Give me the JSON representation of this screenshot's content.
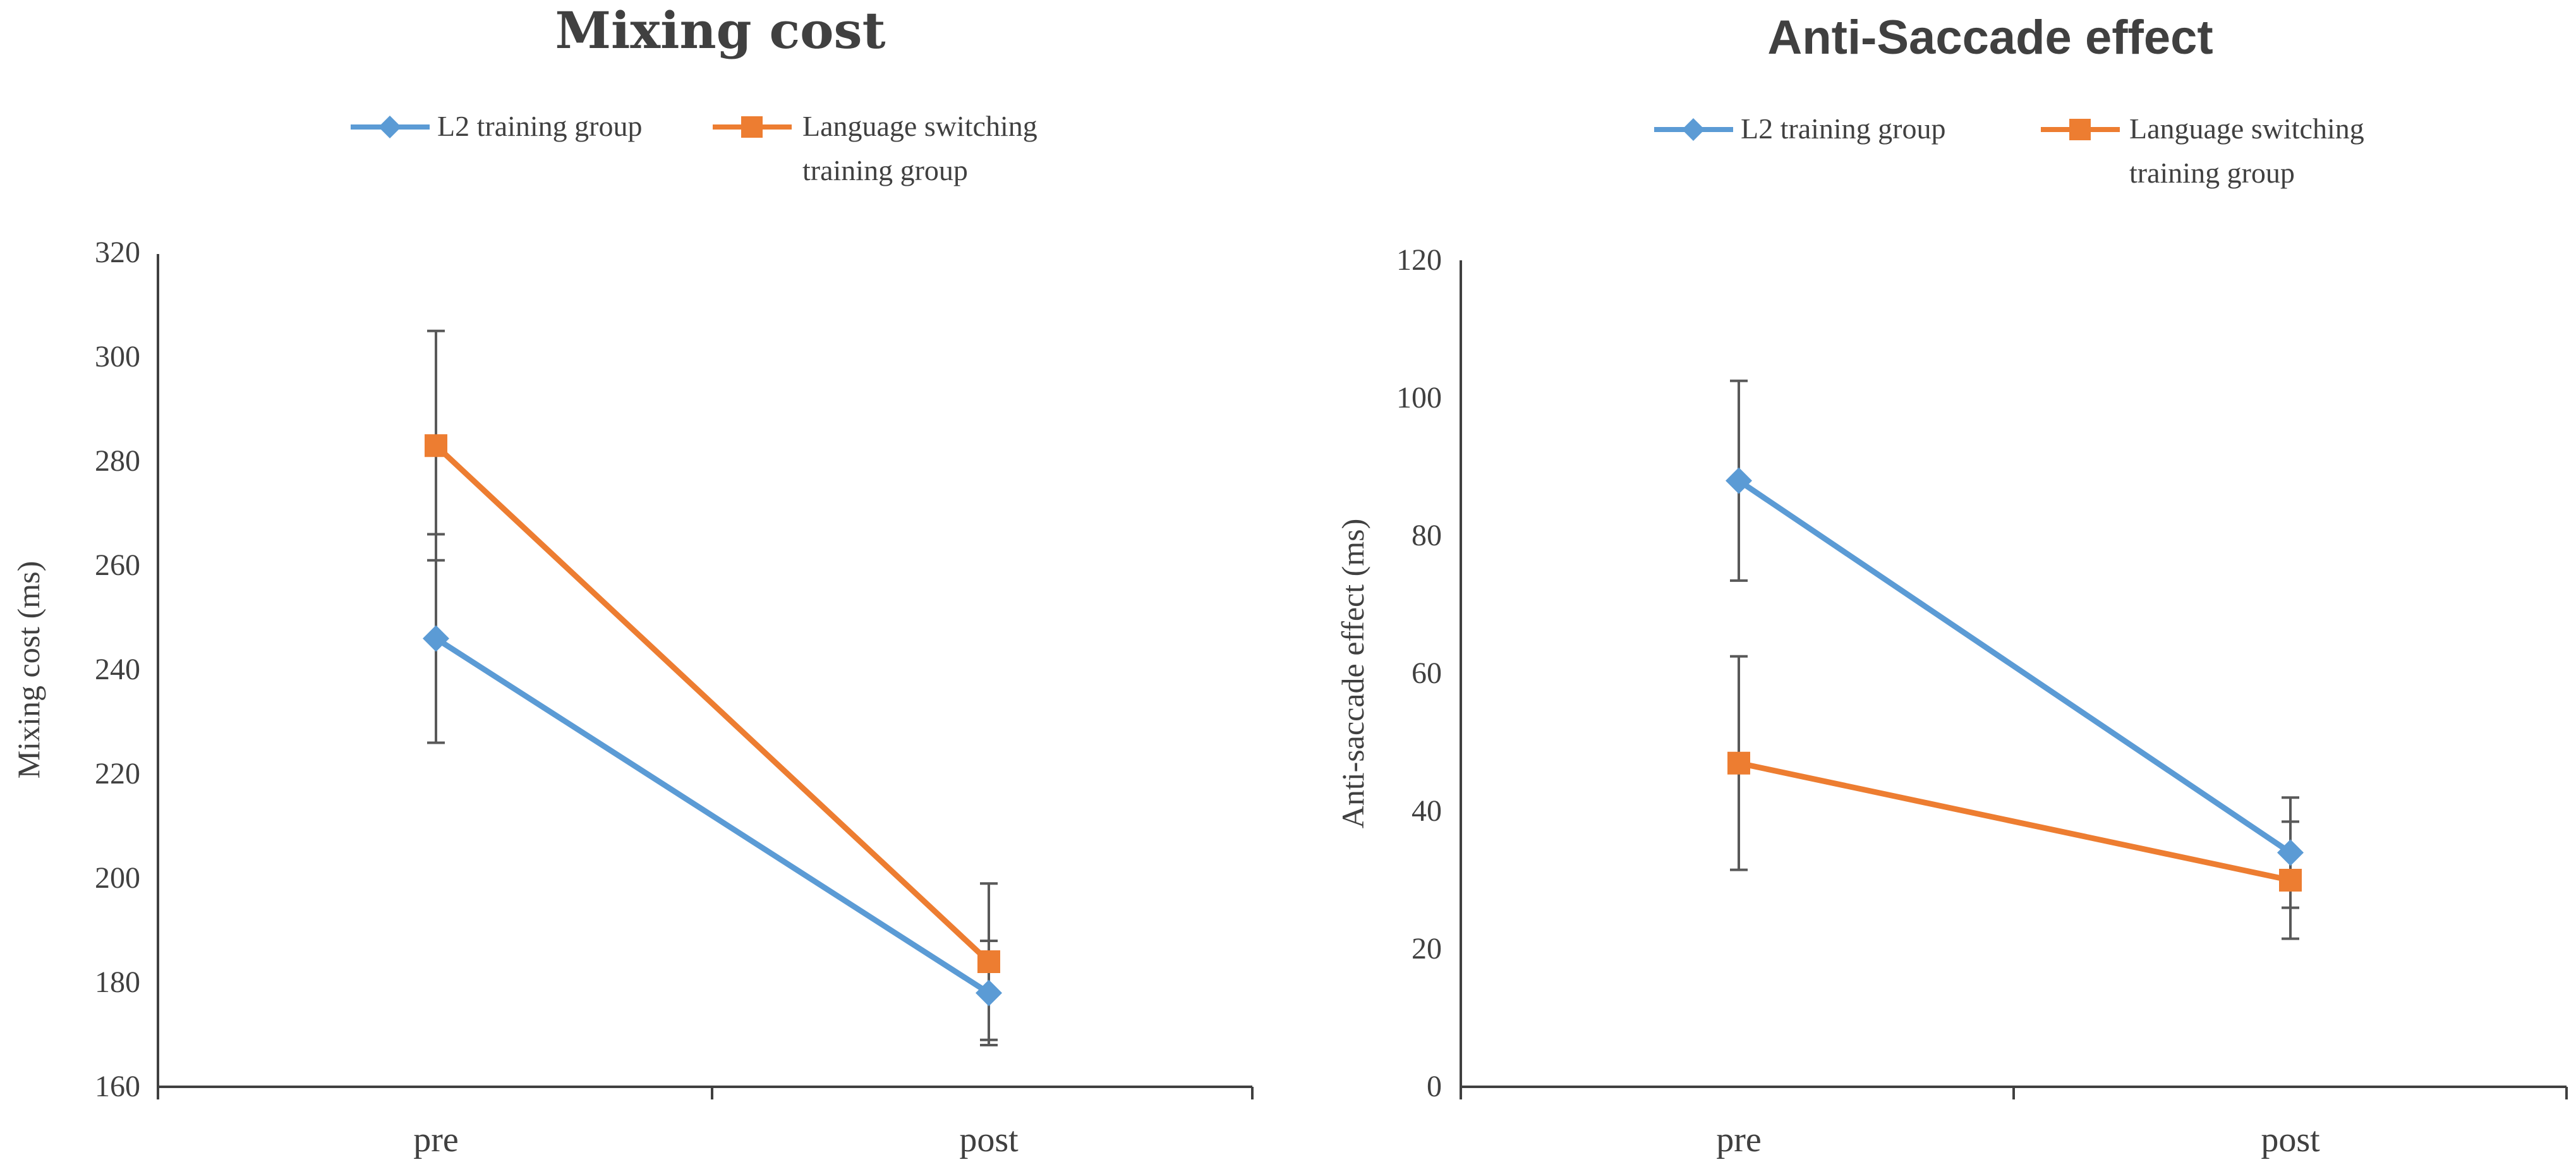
{
  "colors": {
    "l2": "#5B9BD5",
    "switching": "#ED7D31",
    "axis": "#404040",
    "text": "#404040",
    "error": "#595959"
  },
  "chart_data": [
    {
      "type": "line",
      "title": "Mixing cost",
      "ylabel": "Mixing cost (ms)",
      "xlabel": "",
      "categories": [
        "pre",
        "post"
      ],
      "ylim": [
        160,
        320
      ],
      "yticks": [
        "160",
        "180",
        "200",
        "220",
        "240",
        "260",
        "280",
        "300",
        "320"
      ],
      "legend_position": "top",
      "series": [
        {
          "name": "L2 training group",
          "marker": "diamond",
          "values": [
            246,
            178
          ],
          "errors": [
            20,
            10
          ]
        },
        {
          "name": "Language switching training group",
          "name_line1": "Language switching",
          "name_line2": "training group",
          "marker": "square",
          "values": [
            283,
            184
          ],
          "errors": [
            22,
            15
          ]
        }
      ]
    },
    {
      "type": "line",
      "title": "Anti-Saccade effect",
      "ylabel": "Anti-saccade effect (ms)",
      "xlabel": "",
      "categories": [
        "pre",
        "post"
      ],
      "ylim": [
        0,
        120
      ],
      "yticks": [
        "0",
        "20",
        "40",
        "60",
        "80",
        "100",
        "120"
      ],
      "legend_position": "top",
      "series": [
        {
          "name": "L2 training group",
          "marker": "diamond",
          "values": [
            88,
            34
          ],
          "errors": [
            14.5,
            8
          ]
        },
        {
          "name": "Language switching training group",
          "name_line1": "Language switching",
          "name_line2": "training group",
          "marker": "square",
          "values": [
            47,
            30
          ],
          "errors": [
            15.5,
            8.5
          ]
        }
      ]
    }
  ]
}
